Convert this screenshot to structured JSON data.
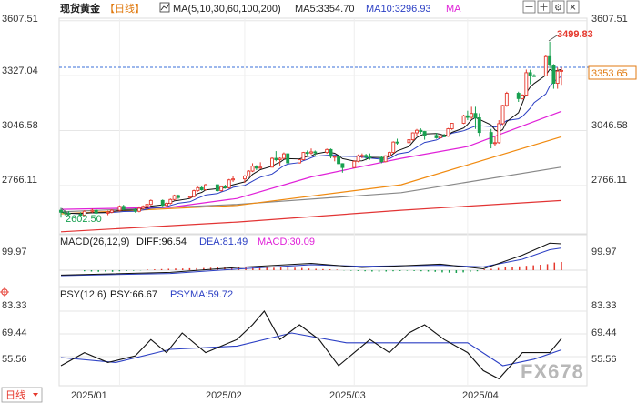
{
  "header": {
    "title": "现货黄金",
    "period": "【日线】",
    "ma_label": "MA(5,10,30,60,100,200)",
    "ma5_label": "MA5:3354.70",
    "ma10_label": "MA10:3296.93",
    "ma_more": "MA",
    "controls": [
      "－",
      "＋",
      "⚙",
      "✕"
    ]
  },
  "price_axis": {
    "left_ticks": [
      "3607.51",
      "3327.04",
      "3046.58",
      "2766.11"
    ],
    "right_ticks": [
      "3607.51",
      "3046.58",
      "2766.11"
    ],
    "current_price": "3353.65",
    "high_label": "3499.83",
    "low_label": "2602.50"
  },
  "macd": {
    "label": "MACD(26,12,9)",
    "diff": "DIFF:96.54",
    "dea": "DEA:81.49",
    "macd": "MACD:30.09",
    "left_tick": "99.97",
    "right_tick": "99.97"
  },
  "psy": {
    "label": "PSY(12,6)",
    "psy": "PSY:66.67",
    "psyma": "PSYMA:59.72",
    "left_ticks": [
      "83.33",
      "69.44",
      "55.56"
    ],
    "right_ticks": [
      "83.33",
      "69.44",
      "55.56"
    ]
  },
  "x_axis": {
    "labels": [
      "2025/01",
      "2025/02",
      "2025/03",
      "2025/04"
    ]
  },
  "footer": {
    "period_tag": "日线",
    "watermark": "FX678"
  },
  "colors": {
    "up": "#e5372c",
    "down": "#18a050",
    "ma5": "#111111",
    "ma10": "#2b3fc4",
    "ma30": "#e020d8",
    "ma60": "#f08a10",
    "ma100": "#888888",
    "ma200": "#e23434",
    "grid": "#e6e6e6",
    "dash": "#3a6fd8"
  },
  "chart_data": {
    "type": "candlestick",
    "title": "现货黄金 日线",
    "y_range": [
      2520,
      3620
    ],
    "x_range": [
      "2024-12-18",
      "2025-04-25"
    ],
    "ohlc": [
      {
        "d": "2024-12-18",
        "o": 2640,
        "h": 2652,
        "l": 2602.5,
        "c": 2630
      },
      {
        "d": "2024-12-19",
        "o": 2630,
        "h": 2640,
        "l": 2615,
        "c": 2625
      },
      {
        "d": "2024-12-20",
        "o": 2625,
        "h": 2636,
        "l": 2612,
        "c": 2620
      },
      {
        "d": "2024-12-23",
        "o": 2620,
        "h": 2630,
        "l": 2610,
        "c": 2615
      },
      {
        "d": "2024-12-24",
        "o": 2615,
        "h": 2640,
        "l": 2612,
        "c": 2635
      },
      {
        "d": "2024-12-26",
        "o": 2635,
        "h": 2648,
        "l": 2626,
        "c": 2640
      },
      {
        "d": "2024-12-27",
        "o": 2640,
        "h": 2645,
        "l": 2620,
        "c": 2625
      },
      {
        "d": "2024-12-30",
        "o": 2625,
        "h": 2638,
        "l": 2615,
        "c": 2630
      },
      {
        "d": "2024-12-31",
        "o": 2630,
        "h": 2645,
        "l": 2625,
        "c": 2640
      },
      {
        "d": "2025-01-02",
        "o": 2640,
        "h": 2665,
        "l": 2635,
        "c": 2660
      },
      {
        "d": "2025-01-03",
        "o": 2660,
        "h": 2668,
        "l": 2640,
        "c": 2645
      },
      {
        "d": "2025-01-06",
        "o": 2645,
        "h": 2650,
        "l": 2628,
        "c": 2635
      },
      {
        "d": "2025-01-07",
        "o": 2635,
        "h": 2660,
        "l": 2630,
        "c": 2650
      },
      {
        "d": "2025-01-08",
        "o": 2650,
        "h": 2665,
        "l": 2645,
        "c": 2660
      },
      {
        "d": "2025-01-09",
        "o": 2660,
        "h": 2675,
        "l": 2655,
        "c": 2670
      },
      {
        "d": "2025-01-10",
        "o": 2670,
        "h": 2695,
        "l": 2665,
        "c": 2690
      },
      {
        "d": "2025-01-13",
        "o": 2690,
        "h": 2695,
        "l": 2660,
        "c": 2665
      },
      {
        "d": "2025-01-14",
        "o": 2665,
        "h": 2680,
        "l": 2660,
        "c": 2675
      },
      {
        "d": "2025-01-15",
        "o": 2675,
        "h": 2700,
        "l": 2670,
        "c": 2695
      },
      {
        "d": "2025-01-16",
        "o": 2695,
        "h": 2720,
        "l": 2690,
        "c": 2715
      },
      {
        "d": "2025-01-17",
        "o": 2715,
        "h": 2720,
        "l": 2698,
        "c": 2705
      },
      {
        "d": "2025-01-20",
        "o": 2705,
        "h": 2715,
        "l": 2700,
        "c": 2710
      },
      {
        "d": "2025-01-21",
        "o": 2710,
        "h": 2745,
        "l": 2705,
        "c": 2740
      },
      {
        "d": "2025-01-22",
        "o": 2740,
        "h": 2760,
        "l": 2735,
        "c": 2755
      },
      {
        "d": "2025-01-23",
        "o": 2755,
        "h": 2762,
        "l": 2740,
        "c": 2745
      },
      {
        "d": "2025-01-24",
        "o": 2745,
        "h": 2775,
        "l": 2740,
        "c": 2770
      },
      {
        "d": "2025-01-27",
        "o": 2770,
        "h": 2772,
        "l": 2735,
        "c": 2740
      },
      {
        "d": "2025-01-28",
        "o": 2740,
        "h": 2765,
        "l": 2735,
        "c": 2760
      },
      {
        "d": "2025-01-29",
        "o": 2760,
        "h": 2770,
        "l": 2750,
        "c": 2755
      },
      {
        "d": "2025-01-30",
        "o": 2755,
        "h": 2800,
        "l": 2750,
        "c": 2795
      },
      {
        "d": "2025-01-31",
        "o": 2795,
        "h": 2815,
        "l": 2785,
        "c": 2800
      },
      {
        "d": "2025-02-03",
        "o": 2800,
        "h": 2820,
        "l": 2780,
        "c": 2815
      },
      {
        "d": "2025-02-04",
        "o": 2815,
        "h": 2845,
        "l": 2810,
        "c": 2840
      },
      {
        "d": "2025-02-05",
        "o": 2840,
        "h": 2880,
        "l": 2835,
        "c": 2865
      },
      {
        "d": "2025-02-06",
        "o": 2865,
        "h": 2870,
        "l": 2845,
        "c": 2855
      },
      {
        "d": "2025-02-07",
        "o": 2855,
        "h": 2885,
        "l": 2850,
        "c": 2860
      },
      {
        "d": "2025-02-10",
        "o": 2860,
        "h": 2910,
        "l": 2858,
        "c": 2905
      },
      {
        "d": "2025-02-11",
        "o": 2905,
        "h": 2942,
        "l": 2890,
        "c": 2898
      },
      {
        "d": "2025-02-12",
        "o": 2898,
        "h": 2910,
        "l": 2865,
        "c": 2905
      },
      {
        "d": "2025-02-13",
        "o": 2905,
        "h": 2935,
        "l": 2900,
        "c": 2928
      },
      {
        "d": "2025-02-14",
        "o": 2928,
        "h": 2930,
        "l": 2878,
        "c": 2882
      },
      {
        "d": "2025-02-17",
        "o": 2882,
        "h": 2900,
        "l": 2878,
        "c": 2898
      },
      {
        "d": "2025-02-18",
        "o": 2898,
        "h": 2938,
        "l": 2895,
        "c": 2935
      },
      {
        "d": "2025-02-19",
        "o": 2935,
        "h": 2945,
        "l": 2920,
        "c": 2932
      },
      {
        "d": "2025-02-20",
        "o": 2932,
        "h": 2955,
        "l": 2925,
        "c": 2938
      },
      {
        "d": "2025-02-21",
        "o": 2938,
        "h": 2945,
        "l": 2920,
        "c": 2935
      },
      {
        "d": "2025-02-24",
        "o": 2935,
        "h": 2955,
        "l": 2928,
        "c": 2950
      },
      {
        "d": "2025-02-25",
        "o": 2950,
        "h": 2955,
        "l": 2905,
        "c": 2915
      },
      {
        "d": "2025-02-26",
        "o": 2915,
        "h": 2920,
        "l": 2890,
        "c": 2915
      },
      {
        "d": "2025-02-27",
        "o": 2915,
        "h": 2918,
        "l": 2875,
        "c": 2878
      },
      {
        "d": "2025-02-28",
        "o": 2878,
        "h": 2880,
        "l": 2832,
        "c": 2858
      },
      {
        "d": "2025-03-03",
        "o": 2858,
        "h": 2895,
        "l": 2855,
        "c": 2890
      },
      {
        "d": "2025-03-04",
        "o": 2890,
        "h": 2925,
        "l": 2885,
        "c": 2918
      },
      {
        "d": "2025-03-05",
        "o": 2918,
        "h": 2930,
        "l": 2905,
        "c": 2920
      },
      {
        "d": "2025-03-06",
        "o": 2920,
        "h": 2928,
        "l": 2895,
        "c": 2912
      },
      {
        "d": "2025-03-07",
        "o": 2912,
        "h": 2930,
        "l": 2898,
        "c": 2910
      },
      {
        "d": "2025-03-10",
        "o": 2910,
        "h": 2915,
        "l": 2880,
        "c": 2888
      },
      {
        "d": "2025-03-11",
        "o": 2888,
        "h": 2920,
        "l": 2885,
        "c": 2918
      },
      {
        "d": "2025-03-12",
        "o": 2918,
        "h": 2940,
        "l": 2912,
        "c": 2935
      },
      {
        "d": "2025-03-13",
        "o": 2935,
        "h": 2992,
        "l": 2930,
        "c": 2988
      },
      {
        "d": "2025-03-14",
        "o": 2988,
        "h": 3005,
        "l": 2975,
        "c": 2985
      },
      {
        "d": "2025-03-17",
        "o": 2985,
        "h": 3003,
        "l": 2982,
        "c": 3000
      },
      {
        "d": "2025-03-18",
        "o": 3000,
        "h": 3038,
        "l": 2995,
        "c": 3035
      },
      {
        "d": "2025-03-19",
        "o": 3035,
        "h": 3055,
        "l": 3020,
        "c": 3048
      },
      {
        "d": "2025-03-20",
        "o": 3048,
        "h": 3058,
        "l": 3030,
        "c": 3042
      },
      {
        "d": "2025-03-21",
        "o": 3042,
        "h": 3045,
        "l": 3000,
        "c": 3022
      },
      {
        "d": "2025-03-24",
        "o": 3022,
        "h": 3035,
        "l": 3005,
        "c": 3010
      },
      {
        "d": "2025-03-25",
        "o": 3010,
        "h": 3025,
        "l": 3005,
        "c": 3020
      },
      {
        "d": "2025-03-26",
        "o": 3020,
        "h": 3030,
        "l": 3012,
        "c": 3018
      },
      {
        "d": "2025-03-27",
        "o": 3018,
        "h": 3060,
        "l": 3015,
        "c": 3056
      },
      {
        "d": "2025-03-28",
        "o": 3056,
        "h": 3086,
        "l": 3050,
        "c": 3084
      },
      {
        "d": "2025-03-31",
        "o": 3084,
        "h": 3128,
        "l": 3080,
        "c": 3122
      },
      {
        "d": "2025-04-01",
        "o": 3122,
        "h": 3148,
        "l": 3100,
        "c": 3114
      },
      {
        "d": "2025-04-02",
        "o": 3114,
        "h": 3168,
        "l": 3105,
        "c": 3134
      },
      {
        "d": "2025-04-03",
        "o": 3134,
        "h": 3168,
        "l": 3055,
        "c": 3112
      },
      {
        "d": "2025-04-04",
        "o": 3112,
        "h": 3135,
        "l": 3015,
        "c": 3037
      },
      {
        "d": "2025-04-07",
        "o": 3037,
        "h": 3055,
        "l": 2956,
        "c": 2982
      },
      {
        "d": "2025-04-08",
        "o": 2982,
        "h": 3015,
        "l": 2970,
        "c": 2985
      },
      {
        "d": "2025-04-09",
        "o": 2985,
        "h": 3100,
        "l": 2980,
        "c": 3082
      },
      {
        "d": "2025-04-10",
        "o": 3082,
        "h": 3178,
        "l": 3075,
        "c": 3175
      },
      {
        "d": "2025-04-11",
        "o": 3175,
        "h": 3245,
        "l": 3168,
        "c": 3237
      },
      {
        "d": "2025-04-14",
        "o": 3237,
        "h": 3245,
        "l": 3193,
        "c": 3210
      },
      {
        "d": "2025-04-15",
        "o": 3210,
        "h": 3232,
        "l": 3205,
        "c": 3228
      },
      {
        "d": "2025-04-16",
        "o": 3228,
        "h": 3358,
        "l": 3225,
        "c": 3342
      },
      {
        "d": "2025-04-17",
        "o": 3342,
        "h": 3357,
        "l": 3283,
        "c": 3327
      },
      {
        "d": "2025-04-18",
        "o": 3327,
        "h": 3335,
        "l": 3320,
        "c": 3326
      },
      {
        "d": "2025-04-21",
        "o": 3326,
        "h": 3430,
        "l": 3325,
        "c": 3424
      },
      {
        "d": "2025-04-22",
        "o": 3424,
        "h": 3499.83,
        "l": 3365,
        "c": 3380
      },
      {
        "d": "2025-04-23",
        "o": 3380,
        "h": 3386,
        "l": 3260,
        "c": 3288
      },
      {
        "d": "2025-04-24",
        "o": 3288,
        "h": 3368,
        "l": 3260,
        "c": 3350
      },
      {
        "d": "2025-04-25",
        "o": 3350,
        "h": 3369,
        "l": 3280,
        "c": 3353.65
      }
    ],
    "ma_series": [
      {
        "name": "MA200",
        "points": [
          [
            "2024-12-18",
            2530
          ],
          [
            "2025-02-01",
            2580
          ],
          [
            "2025-03-15",
            2640
          ],
          [
            "2025-04-25",
            2690
          ]
        ]
      },
      {
        "name": "MA100",
        "points": [
          [
            "2024-12-18",
            2632
          ],
          [
            "2025-02-01",
            2670
          ],
          [
            "2025-03-15",
            2730
          ],
          [
            "2025-04-25",
            2860
          ]
        ]
      },
      {
        "name": "MA60",
        "points": [
          [
            "2024-12-18",
            2622
          ],
          [
            "2025-02-01",
            2665
          ],
          [
            "2025-03-15",
            2770
          ],
          [
            "2025-04-25",
            3015
          ]
        ]
      },
      {
        "name": "MA30",
        "points": [
          [
            "2024-12-18",
            2645
          ],
          [
            "2025-01-15",
            2655
          ],
          [
            "2025-02-01",
            2700
          ],
          [
            "2025-02-20",
            2810
          ],
          [
            "2025-03-15",
            2905
          ],
          [
            "2025-04-01",
            2965
          ],
          [
            "2025-04-25",
            3145
          ]
        ]
      }
    ],
    "macd_series": {
      "y_range": [
        -60,
        130
      ],
      "diff": [
        [
          "2024-12-18",
          -18
        ],
        [
          "2025-01-15",
          -8
        ],
        [
          "2025-02-01",
          10
        ],
        [
          "2025-02-20",
          25
        ],
        [
          "2025-03-05",
          10
        ],
        [
          "2025-03-25",
          22
        ],
        [
          "2025-04-05",
          5
        ],
        [
          "2025-04-15",
          55
        ],
        [
          "2025-04-22",
          99
        ],
        [
          "2025-04-25",
          96.54
        ]
      ],
      "dea": [
        [
          "2024-12-18",
          -20
        ],
        [
          "2025-01-15",
          -12
        ],
        [
          "2025-02-01",
          4
        ],
        [
          "2025-02-20",
          20
        ],
        [
          "2025-03-05",
          14
        ],
        [
          "2025-03-25",
          18
        ],
        [
          "2025-04-05",
          12
        ],
        [
          "2025-04-15",
          40
        ],
        [
          "2025-04-22",
          75
        ],
        [
          "2025-04-25",
          81.49
        ]
      ],
      "hist": [
        -4,
        -5,
        -6,
        -5,
        -6,
        -4,
        -3,
        -2,
        -1,
        2,
        3,
        4,
        5,
        6,
        6,
        7,
        7,
        8,
        9,
        10,
        11,
        12,
        11,
        12,
        13,
        11,
        10,
        9,
        10,
        11,
        9,
        8,
        6,
        5,
        4,
        3,
        2,
        -1,
        -2,
        -3,
        -4,
        -5,
        -6,
        -5,
        -4,
        -3,
        -2,
        -3,
        -4,
        -5,
        -6,
        -8,
        -9,
        -10,
        -8,
        -6,
        -4,
        3,
        5,
        8,
        10,
        12,
        14,
        16,
        18,
        20,
        22,
        28,
        30.09
      ]
    },
    "psy_series": {
      "y_range": [
        40,
        90
      ],
      "psy": [
        [
          "2024-12-18",
          50
        ],
        [
          "2024-12-24",
          58
        ],
        [
          "2024-12-30",
          52
        ],
        [
          "2025-01-06",
          56
        ],
        [
          "2025-01-10",
          66
        ],
        [
          "2025-01-14",
          58
        ],
        [
          "2025-01-18",
          70
        ],
        [
          "2025-01-24",
          58
        ],
        [
          "2025-02-01",
          66
        ],
        [
          "2025-02-05",
          75
        ],
        [
          "2025-02-08",
          83.33
        ],
        [
          "2025-02-12",
          66
        ],
        [
          "2025-02-17",
          75
        ],
        [
          "2025-02-22",
          66
        ],
        [
          "2025-02-27",
          50
        ],
        [
          "2025-03-03",
          58
        ],
        [
          "2025-03-07",
          66
        ],
        [
          "2025-03-12",
          58
        ],
        [
          "2025-03-17",
          70
        ],
        [
          "2025-03-21",
          75
        ],
        [
          "2025-03-26",
          66
        ],
        [
          "2025-04-01",
          58
        ],
        [
          "2025-04-05",
          47
        ],
        [
          "2025-04-09",
          42
        ],
        [
          "2025-04-12",
          50
        ],
        [
          "2025-04-15",
          58
        ],
        [
          "2025-04-18",
          58
        ],
        [
          "2025-04-22",
          58
        ],
        [
          "2025-04-25",
          66.67
        ]
      ],
      "psyma": [
        [
          "2024-12-18",
          55
        ],
        [
          "2025-01-01",
          52
        ],
        [
          "2025-01-15",
          60
        ],
        [
          "2025-02-01",
          62
        ],
        [
          "2025-02-15",
          70
        ],
        [
          "2025-03-01",
          64
        ],
        [
          "2025-03-15",
          64
        ],
        [
          "2025-04-01",
          64
        ],
        [
          "2025-04-10",
          50
        ],
        [
          "2025-04-18",
          54
        ],
        [
          "2025-04-25",
          59.72
        ]
      ]
    }
  }
}
